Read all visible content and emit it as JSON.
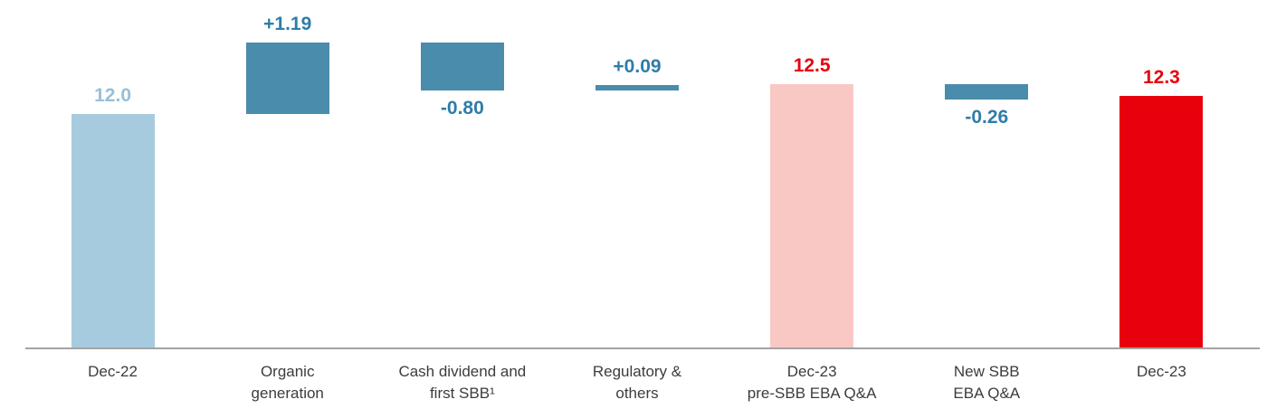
{
  "chart_data": {
    "type": "bar",
    "subtype": "waterfall",
    "title": "",
    "xlabel": "",
    "ylabel": "",
    "ylim": [
      8.1,
      13.9
    ],
    "grid": false,
    "legend": false,
    "axis_color": "#a3a3a3",
    "category_color": "#3c3c3c",
    "colors": {
      "start_bar": "#a7cbde",
      "delta_bar": "#4a8cab",
      "pre_sbb_bar": "#f9c8c5",
      "final_bar": "#e8000d",
      "delta_label": "#2e7da8",
      "start_label": "#98c0d8",
      "red_label": "#e8000d"
    },
    "bars": [
      {
        "label": "Dec-22",
        "value_label": "12.0",
        "value": 12.0,
        "kind": "total",
        "start": null,
        "end": 12.0,
        "bar_color": "#a7cbde",
        "value_color": "#98c0d8",
        "value_position": "above"
      },
      {
        "label": "Organic\ngeneration",
        "value_label": "+1.19",
        "value": 1.19,
        "kind": "delta",
        "start": 12.0,
        "end": 13.19,
        "bar_color": "#4a8cab",
        "value_color": "#2e7da8",
        "value_position": "above"
      },
      {
        "label": "Cash dividend and\nfirst SBB¹",
        "value_label": "-0.80",
        "value": -0.8,
        "kind": "delta",
        "start": 13.19,
        "end": 12.39,
        "bar_color": "#4a8cab",
        "value_color": "#2e7da8",
        "value_position": "below"
      },
      {
        "label": "Regulatory &\nothers",
        "value_label": "+0.09",
        "value": 0.09,
        "kind": "delta",
        "start": 12.39,
        "end": 12.48,
        "bar_color": "#4a8cab",
        "value_color": "#2e7da8",
        "value_position": "above"
      },
      {
        "label": "Dec-23\npre-SBB EBA Q&A",
        "value_label": "12.5",
        "value": 12.5,
        "kind": "total",
        "start": null,
        "end": 12.5,
        "bar_color": "#f9c8c5",
        "value_color": "#e8000d",
        "value_position": "above"
      },
      {
        "label": "New SBB\nEBA Q&A",
        "value_label": "-0.26",
        "value": -0.26,
        "kind": "delta",
        "start": 12.5,
        "end": 12.24,
        "bar_color": "#4a8cab",
        "value_color": "#2e7da8",
        "value_position": "below"
      },
      {
        "label": "Dec-23",
        "value_label": "12.3",
        "value": 12.3,
        "kind": "total",
        "start": null,
        "end": 12.3,
        "bar_color": "#e8000d",
        "value_color": "#e8000d",
        "value_position": "above"
      }
    ]
  }
}
